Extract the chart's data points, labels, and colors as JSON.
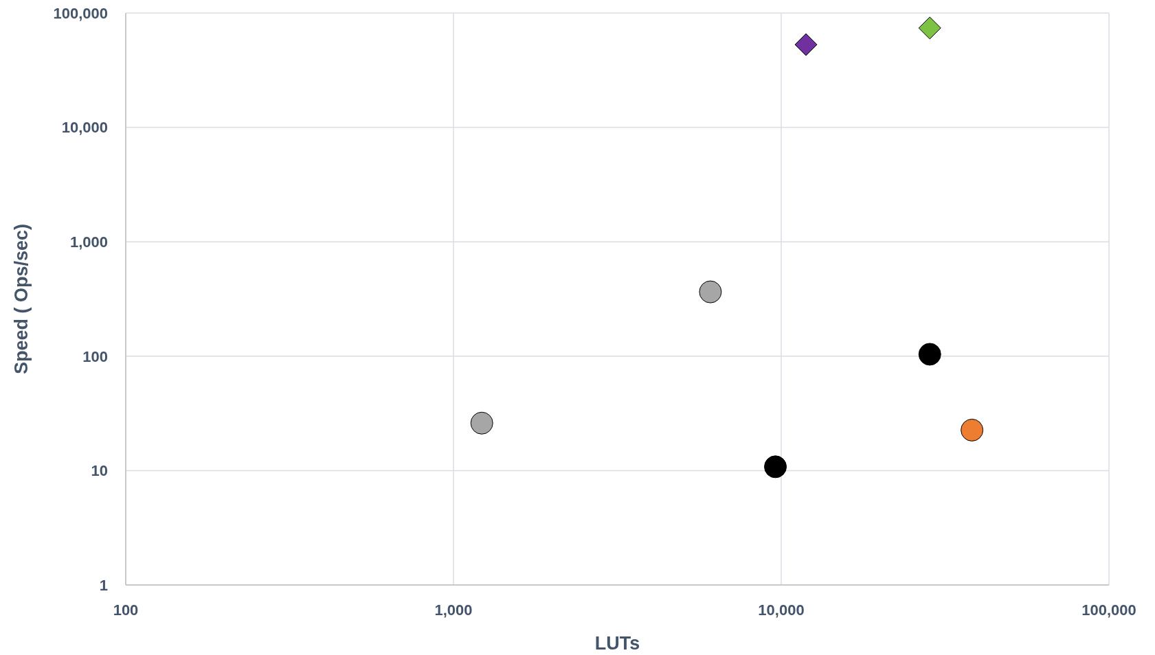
{
  "chart_data": {
    "type": "scatter",
    "xlabel": "LUTs",
    "ylabel": "Speed ( Ops/sec)",
    "log": "xy",
    "grid": true,
    "xlim": [
      100,
      100000
    ],
    "xticks": [
      100,
      {
        "value": 1000,
        "label": "1,000"
      },
      {
        "value": 10000,
        "label": "10,000"
      },
      {
        "value": 100000,
        "label": "100,000"
      }
    ],
    "ylim": [
      1,
      100000
    ],
    "yticks": [
      1,
      10,
      100,
      {
        "value": 1000,
        "label": "1,000"
      },
      {
        "value": 10000,
        "label": "10,000"
      },
      {
        "value": 100000,
        "label": "100,000"
      }
    ],
    "series": [
      {
        "color": "#7030a0",
        "marker": "diamond",
        "x": [
          11900
        ],
        "values": [
          53000
        ]
      },
      {
        "color": "#7dc242",
        "marker": "diamond",
        "x": [
          28400
        ],
        "values": [
          74000
        ]
      },
      {
        "color": "#a6a6a6",
        "marker": "circle",
        "x": [
          6080,
          1220
        ],
        "values": [
          365,
          26
        ]
      },
      {
        "color": "#000000",
        "marker": "circle",
        "x": [
          28400,
          9600
        ],
        "values": [
          104,
          10.8
        ]
      },
      {
        "color": "#ed7d31",
        "marker": "circle",
        "x": [
          38200
        ],
        "values": [
          22.6
        ]
      }
    ]
  }
}
